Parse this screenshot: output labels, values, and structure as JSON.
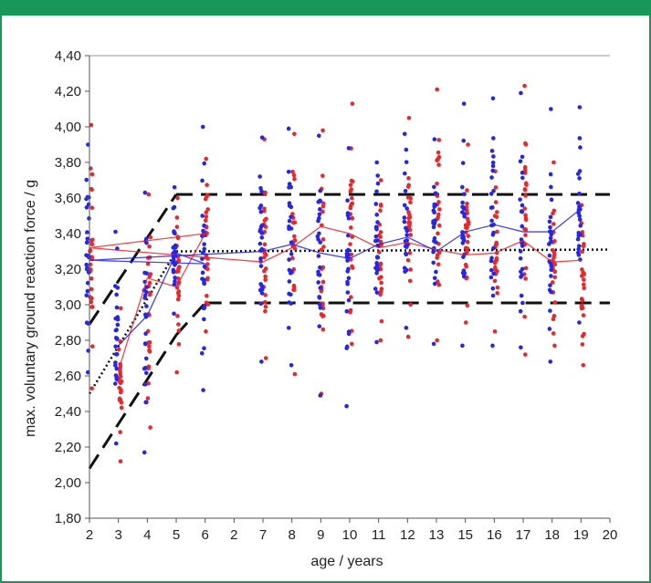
{
  "chart_data": {
    "type": "scatter",
    "title": "",
    "xlabel": "age / years",
    "ylabel": "max. voluntary ground reaction force / g",
    "x_tick_labels": [
      "2",
      "3",
      "4",
      "5",
      "6",
      "2",
      "7",
      "8",
      "9",
      "10",
      "11",
      "12",
      "13",
      "15",
      "16",
      "17",
      "18",
      "19",
      "20"
    ],
    "y_tick_labels": [
      "1,80",
      "2,00",
      "2,20",
      "2,40",
      "2,60",
      "2,80",
      "3,00",
      "3,20",
      "3,40",
      "3,60",
      "3,80",
      "4,00",
      "4,20",
      "4,40"
    ],
    "ylim": [
      1.8,
      4.4
    ],
    "grid": false,
    "colors": {
      "red": "#e8282b",
      "blue": "#2626e8",
      "black": "#111111",
      "frame": "#19975a"
    },
    "mean_lines": [
      {
        "color": "red",
        "values": [
          2.63,
          3.15,
          3.1,
          3.4,
          3.32,
          3.24,
          3.32,
          3.44,
          3.4,
          3.32,
          3.35,
          3.31,
          3.28,
          3.29,
          3.36,
          3.24,
          3.25
        ]
      },
      {
        "color": "blue",
        "values": [
          2.77,
          2.94,
          3.29,
          3.23,
          3.25,
          3.3,
          3.34,
          3.29,
          3.26,
          3.34,
          3.38,
          3.3,
          3.41,
          3.45,
          3.41,
          3.41,
          3.54
        ]
      }
    ],
    "scatter_positions": [
      "3",
      "4",
      "5",
      "6",
      "2",
      "7",
      "8",
      "9",
      "10",
      "11",
      "12",
      "13",
      "15",
      "16",
      "17",
      "18",
      "19"
    ],
    "scatter_ranges": {
      "red": [
        [
          2.12,
          2.98
        ],
        [
          2.31,
          3.62
        ],
        [
          2.62,
          3.6
        ],
        [
          2.85,
          3.82
        ],
        [
          2.53,
          4.01
        ],
        [
          2.7,
          3.93
        ],
        [
          2.61,
          3.96
        ],
        [
          2.5,
          3.98
        ],
        [
          2.78,
          4.13
        ],
        [
          2.8,
          3.7
        ],
        [
          2.82,
          4.05
        ],
        [
          2.8,
          4.21
        ],
        [
          2.9,
          3.9
        ],
        [
          2.85,
          3.75
        ],
        [
          2.72,
          4.23
        ],
        [
          2.77,
          3.8
        ],
        [
          2.66,
          3.56
        ]
      ],
      "blue": [
        [
          2.22,
          3.41
        ],
        [
          2.17,
          3.63
        ],
        [
          2.95,
          3.66
        ],
        [
          2.52,
          4.0
        ],
        [
          2.62,
          3.9
        ],
        [
          2.68,
          3.94
        ],
        [
          2.66,
          3.99
        ],
        [
          2.49,
          3.95
        ],
        [
          2.43,
          3.88
        ],
        [
          2.79,
          3.8
        ],
        [
          2.87,
          3.96
        ],
        [
          2.78,
          3.93
        ],
        [
          2.77,
          4.13
        ],
        [
          2.77,
          4.16
        ],
        [
          2.76,
          4.19
        ],
        [
          2.68,
          4.1
        ],
        [
          2.9,
          4.11
        ]
      ]
    },
    "reference_lines": [
      {
        "style": "dashed",
        "from": [
          "2",
          2.08
        ],
        "to": [
          "5",
          2.83
        ]
      },
      {
        "style": "dashed",
        "from": [
          "5",
          2.83
        ],
        "to": [
          "6",
          3.01
        ]
      },
      {
        "style": "dashed",
        "from": [
          "6",
          3.01
        ],
        "to": [
          "20",
          3.01
        ]
      },
      {
        "style": "dashed",
        "from": [
          "2",
          2.89
        ],
        "to": [
          "5",
          3.62
        ]
      },
      {
        "style": "dashed",
        "from": [
          "5",
          3.62
        ],
        "to": [
          "20",
          3.62
        ]
      },
      {
        "style": "dotted",
        "from": [
          "2",
          2.5
        ],
        "to": [
          "5",
          3.3
        ]
      },
      {
        "style": "dotted",
        "from": [
          "5",
          3.3
        ],
        "to": [
          "20",
          3.31
        ]
      }
    ]
  }
}
